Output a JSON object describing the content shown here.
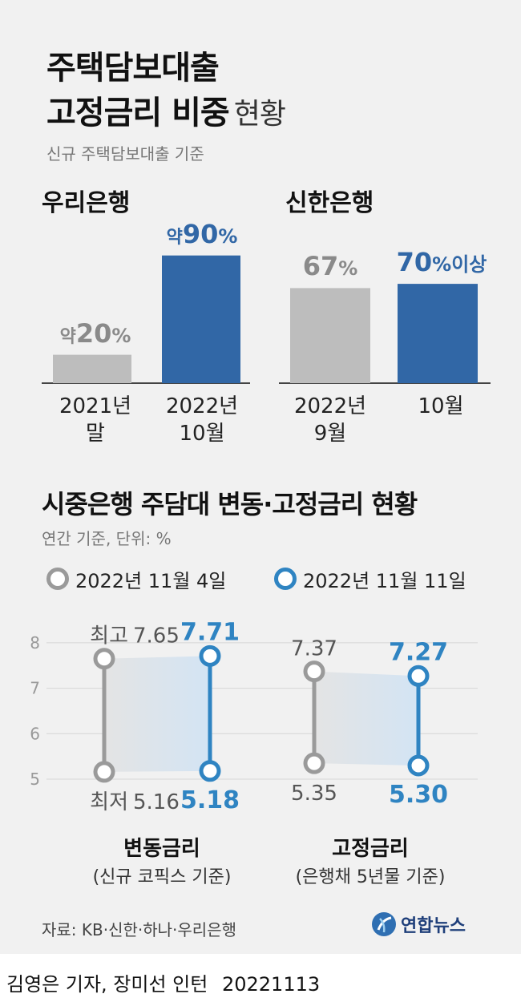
{
  "title": {
    "line1": "주택담보대출",
    "line2_bold": "고정금리 비중",
    "line2_light": "현황"
  },
  "subtitle": "신규 주택담보대출 기준",
  "chart_data": [
    {
      "type": "bar",
      "title": "우리은행",
      "categories": [
        [
          "2021년",
          "말"
        ],
        [
          "2022년",
          "10월"
        ]
      ],
      "values": [
        20,
        90
      ],
      "labels": [
        {
          "prefix": "약",
          "number": "20",
          "unit": "%"
        },
        {
          "prefix": "약",
          "number": "90",
          "unit": "%"
        }
      ],
      "ylim": [
        0,
        100
      ],
      "colors": [
        "#bdbdbd",
        "#3167a6"
      ]
    },
    {
      "type": "bar",
      "title": "신한은행",
      "categories": [
        [
          "2022년",
          "9월"
        ],
        [
          "",
          "10월"
        ]
      ],
      "values": [
        67,
        70
      ],
      "labels": [
        {
          "prefix": "",
          "number": "67",
          "unit": "%"
        },
        {
          "prefix": "",
          "number": "70",
          "unit": "%이상"
        }
      ],
      "ylim": [
        0,
        100
      ],
      "colors": [
        "#bdbdbd",
        "#3167a6"
      ]
    },
    {
      "type": "range",
      "title": "시중은행 주담대 변동·고정금리 현황",
      "subtitle": "연간 기준, 단위: %",
      "yticks": [
        5,
        6,
        7,
        8
      ],
      "ylim": [
        5,
        8
      ],
      "series": [
        {
          "name": "2022년 11월 4일",
          "color": "#9a9a9a"
        },
        {
          "name": "2022년 11월 11일",
          "color": "#2f84c2"
        }
      ],
      "groups": [
        {
          "name": "변동금리",
          "sub": "(신규 코픽스 기준)",
          "max_label": "최고",
          "min_label": "최저",
          "values": [
            {
              "high": 7.65,
              "low": 5.16
            },
            {
              "high": 7.71,
              "low": 5.18
            }
          ],
          "text": [
            {
              "high": "7.65",
              "low": "5.16"
            },
            {
              "high": "7.71",
              "low": "5.18"
            }
          ]
        },
        {
          "name": "고정금리",
          "sub": "(은행채 5년물 기준)",
          "max_label": "",
          "min_label": "",
          "values": [
            {
              "high": 7.37,
              "low": 5.35
            },
            {
              "high": 7.27,
              "low": 5.3
            }
          ],
          "text": [
            {
              "high": "7.37",
              "low": "5.35"
            },
            {
              "high": "7.27",
              "low": "5.30"
            }
          ]
        }
      ]
    }
  ],
  "source": "자료: KB·신한·하나·우리은행",
  "logo": {
    "icon": "yonhap-globe-icon",
    "text": "연합뉴스"
  },
  "credit": {
    "names": "김영은 기자, 장미선 인턴",
    "date": "20221113"
  },
  "colors": {
    "gray_bar": "#bdbdbd",
    "blue_bar": "#3167a6",
    "gray_line": "#9a9a9a",
    "blue_line": "#2f84c2"
  }
}
